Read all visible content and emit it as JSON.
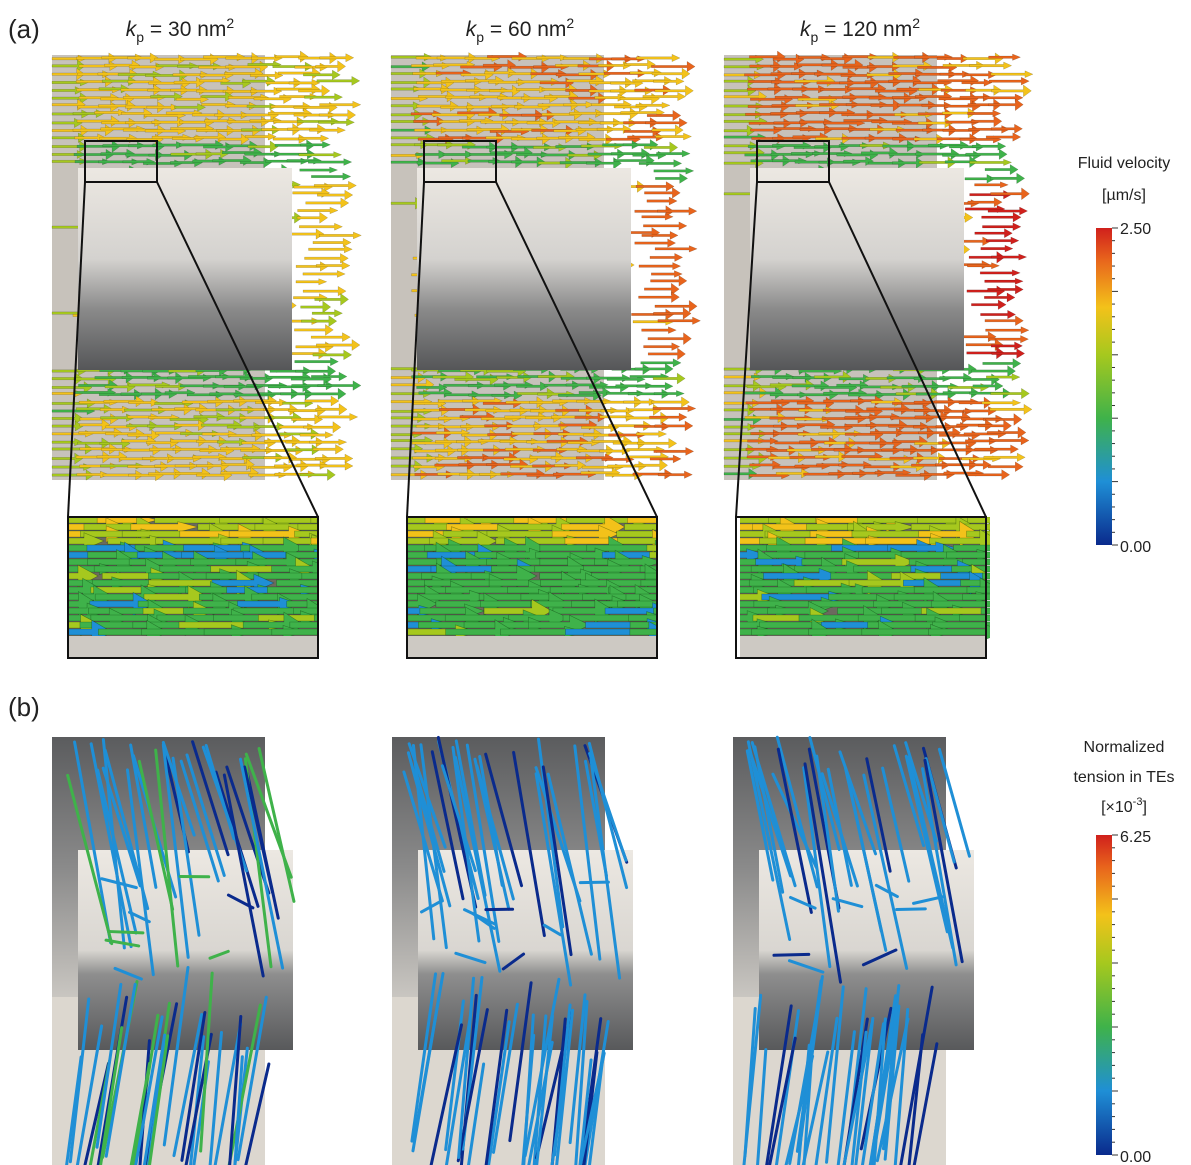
{
  "panel_a": {
    "label": "(a)",
    "columns": [
      {
        "symbol": "k",
        "subscript": "p",
        "text": " = 30 nm",
        "superscript": "2"
      },
      {
        "symbol": "k",
        "subscript": "p",
        "text": " = 60 nm",
        "superscript": "2"
      },
      {
        "symbol": "k",
        "subscript": "p",
        "text": " = 120 nm",
        "superscript": "2"
      }
    ],
    "colorbar": {
      "title": "Fluid velocity",
      "unit": "[µm/s]",
      "max_label": "2.50",
      "min_label": "0.00"
    }
  },
  "panel_b": {
    "label": "(b)",
    "colorbar": {
      "title_line1": "Normalized",
      "title_line2": "tension in TEs",
      "unit_prefix": "[×10",
      "unit_exponent": "-3",
      "unit_suffix": "]",
      "max_label": "6.25",
      "min_label": "0.00"
    }
  }
}
